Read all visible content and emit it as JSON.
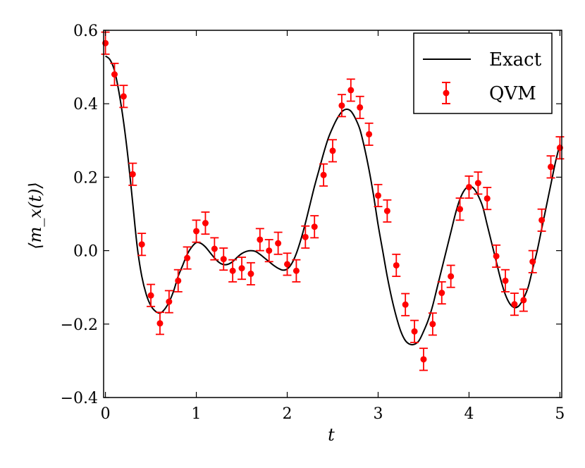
{
  "chart_data": {
    "type": "line",
    "title": "",
    "xlabel": "t",
    "ylabel": "⟨m_x(t)⟩",
    "xlim": [
      -0.02,
      5.02
    ],
    "ylim": [
      -0.4,
      0.6
    ],
    "x_ticks": [
      0,
      1,
      2,
      3,
      4,
      5
    ],
    "x_tick_labels": [
      "0",
      "1",
      "2",
      "3",
      "4",
      "5"
    ],
    "y_ticks": [
      -0.4,
      -0.2,
      0.0,
      0.2,
      0.4,
      0.6
    ],
    "y_tick_labels": [
      "−0.4",
      "−0.2",
      "0.0",
      "0.2",
      "0.4",
      "0.6"
    ],
    "grid": false,
    "legend_position": "top-right",
    "colors": {
      "exact": "#000000",
      "qvm": "#ff0000"
    },
    "series": [
      {
        "name": "Exact",
        "kind": "line",
        "x": [
          0.0,
          0.05,
          0.1,
          0.15,
          0.2,
          0.25,
          0.3,
          0.35,
          0.4,
          0.45,
          0.5,
          0.55,
          0.6,
          0.65,
          0.7,
          0.75,
          0.8,
          0.85,
          0.9,
          0.95,
          1.0,
          1.05,
          1.1,
          1.15,
          1.2,
          1.25,
          1.3,
          1.35,
          1.4,
          1.45,
          1.5,
          1.55,
          1.6,
          1.65,
          1.7,
          1.75,
          1.8,
          1.85,
          1.9,
          1.95,
          2.0,
          2.05,
          2.1,
          2.15,
          2.2,
          2.25,
          2.3,
          2.35,
          2.4,
          2.45,
          2.5,
          2.55,
          2.6,
          2.65,
          2.7,
          2.75,
          2.8,
          2.85,
          2.9,
          2.95,
          3.0,
          3.05,
          3.1,
          3.15,
          3.2,
          3.25,
          3.3,
          3.35,
          3.4,
          3.45,
          3.5,
          3.55,
          3.6,
          3.65,
          3.7,
          3.75,
          3.8,
          3.85,
          3.9,
          3.95,
          4.0,
          4.05,
          4.1,
          4.15,
          4.2,
          4.25,
          4.3,
          4.35,
          4.4,
          4.45,
          4.5,
          4.55,
          4.6,
          4.65,
          4.7,
          4.75,
          4.8,
          4.85,
          4.9,
          4.95,
          5.0
        ],
        "y": [
          0.53,
          0.52,
          0.49,
          0.43,
          0.35,
          0.25,
          0.13,
          0.01,
          -0.07,
          -0.12,
          -0.15,
          -0.165,
          -0.17,
          -0.16,
          -0.14,
          -0.11,
          -0.07,
          -0.04,
          -0.01,
          0.01,
          0.022,
          0.02,
          0.01,
          -0.005,
          -0.02,
          -0.032,
          -0.038,
          -0.037,
          -0.03,
          -0.018,
          -0.008,
          -0.002,
          0.0,
          -0.002,
          -0.01,
          -0.02,
          -0.03,
          -0.04,
          -0.048,
          -0.053,
          -0.05,
          -0.035,
          -0.008,
          0.03,
          0.075,
          0.125,
          0.175,
          0.22,
          0.265,
          0.305,
          0.335,
          0.36,
          0.378,
          0.385,
          0.38,
          0.36,
          0.33,
          0.28,
          0.22,
          0.15,
          0.07,
          0.0,
          -0.07,
          -0.13,
          -0.18,
          -0.22,
          -0.245,
          -0.255,
          -0.255,
          -0.245,
          -0.22,
          -0.19,
          -0.15,
          -0.1,
          -0.05,
          0.0,
          0.05,
          0.1,
          0.14,
          0.165,
          0.175,
          0.17,
          0.15,
          0.12,
          0.07,
          0.02,
          -0.03,
          -0.08,
          -0.12,
          -0.145,
          -0.155,
          -0.15,
          -0.13,
          -0.1,
          -0.05,
          0.0,
          0.06,
          0.12,
          0.18,
          0.24,
          0.29
        ]
      },
      {
        "name": "QVM",
        "kind": "errorbar",
        "x": [
          0.0,
          0.1,
          0.2,
          0.3,
          0.4,
          0.5,
          0.6,
          0.7,
          0.8,
          0.9,
          1.0,
          1.1,
          1.2,
          1.3,
          1.4,
          1.5,
          1.6,
          1.7,
          1.8,
          1.9,
          2.0,
          2.1,
          2.2,
          2.3,
          2.4,
          2.5,
          2.6,
          2.7,
          2.8,
          2.9,
          3.0,
          3.1,
          3.2,
          3.3,
          3.4,
          3.5,
          3.6,
          3.7,
          3.8,
          3.9,
          4.0,
          4.1,
          4.2,
          4.3,
          4.4,
          4.5,
          4.6,
          4.7,
          4.8,
          4.9,
          5.0
        ],
        "y": [
          0.565,
          0.48,
          0.42,
          0.208,
          0.017,
          -0.122,
          -0.198,
          -0.139,
          -0.082,
          -0.02,
          0.053,
          0.075,
          0.005,
          -0.023,
          -0.055,
          -0.048,
          -0.063,
          0.03,
          0.0,
          0.02,
          -0.037,
          -0.055,
          0.037,
          0.065,
          0.206,
          0.272,
          0.395,
          0.437,
          0.39,
          0.317,
          0.15,
          0.108,
          -0.04,
          -0.147,
          -0.22,
          -0.296,
          -0.2,
          -0.115,
          -0.07,
          0.113,
          0.173,
          0.184,
          0.142,
          -0.015,
          -0.082,
          -0.146,
          -0.135,
          -0.03,
          0.083,
          0.228,
          0.28
        ],
        "error": 0.03
      }
    ]
  }
}
